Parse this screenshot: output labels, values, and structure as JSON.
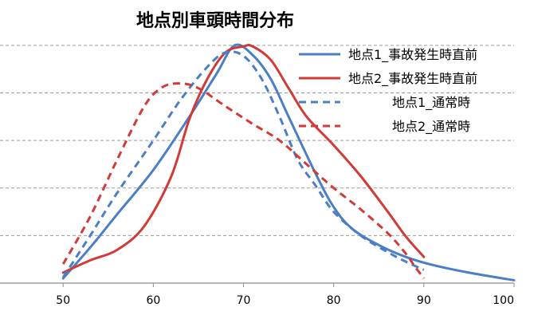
{
  "chart_data": {
    "type": "line",
    "title": "地点別車頭時間分布",
    "xlabel": "",
    "ylabel": "",
    "xlim": [
      43,
      100
    ],
    "ylim": [
      0,
      5.2
    ],
    "x_ticks": [
      50,
      60,
      70,
      80,
      90,
      100
    ],
    "y_gridlines": [
      1,
      2,
      3,
      4,
      5
    ],
    "grid": true,
    "legend_position": "top-right",
    "series": [
      {
        "name": "地点1_事故発生時直前",
        "color": "#4a7ec5",
        "dashed": false,
        "x": [
          50,
          53,
          56,
          60,
          64,
          67,
          69,
          71,
          73,
          75,
          78,
          80,
          82,
          85,
          88,
          91,
          95,
          100
        ],
        "y": [
          0.1,
          0.75,
          1.45,
          2.38,
          3.5,
          4.4,
          5.0,
          4.8,
          4.3,
          3.5,
          2.3,
          1.6,
          1.15,
          0.8,
          0.55,
          0.38,
          0.22,
          0.06
        ]
      },
      {
        "name": "地点2_事故発生時直前",
        "color": "#d13a37",
        "dashed": false,
        "x": [
          50,
          53,
          56,
          59,
          62,
          64,
          66,
          68,
          70,
          71,
          73,
          75,
          77,
          80,
          83,
          86,
          88,
          90
        ],
        "y": [
          0.22,
          0.48,
          0.7,
          1.2,
          2.25,
          3.45,
          4.3,
          4.85,
          4.98,
          4.98,
          4.7,
          4.1,
          3.5,
          2.9,
          2.25,
          1.5,
          0.98,
          0.55
        ]
      },
      {
        "name": "地点1_通常時",
        "color": "#4a7ec5",
        "dashed": true,
        "x": [
          50,
          53,
          56,
          60,
          63,
          66,
          68,
          70,
          72,
          74,
          76,
          78,
          80,
          83,
          86,
          88,
          90
        ],
        "y": [
          0.12,
          1.0,
          1.9,
          3.0,
          3.85,
          4.55,
          4.85,
          4.78,
          4.3,
          3.5,
          2.6,
          2.05,
          1.5,
          1.0,
          0.65,
          0.45,
          0.28
        ]
      },
      {
        "name": "地点2_通常時",
        "color": "#d13a37",
        "dashed": true,
        "x": [
          50,
          53,
          56,
          59,
          61,
          63,
          65,
          68,
          71,
          74,
          77,
          80,
          83,
          86,
          88,
          89,
          90
        ],
        "y": [
          0.4,
          1.4,
          2.6,
          3.72,
          4.12,
          4.2,
          4.1,
          3.72,
          3.35,
          3.0,
          2.5,
          2.0,
          1.55,
          1.05,
          0.62,
          0.35,
          0.1
        ]
      }
    ]
  }
}
